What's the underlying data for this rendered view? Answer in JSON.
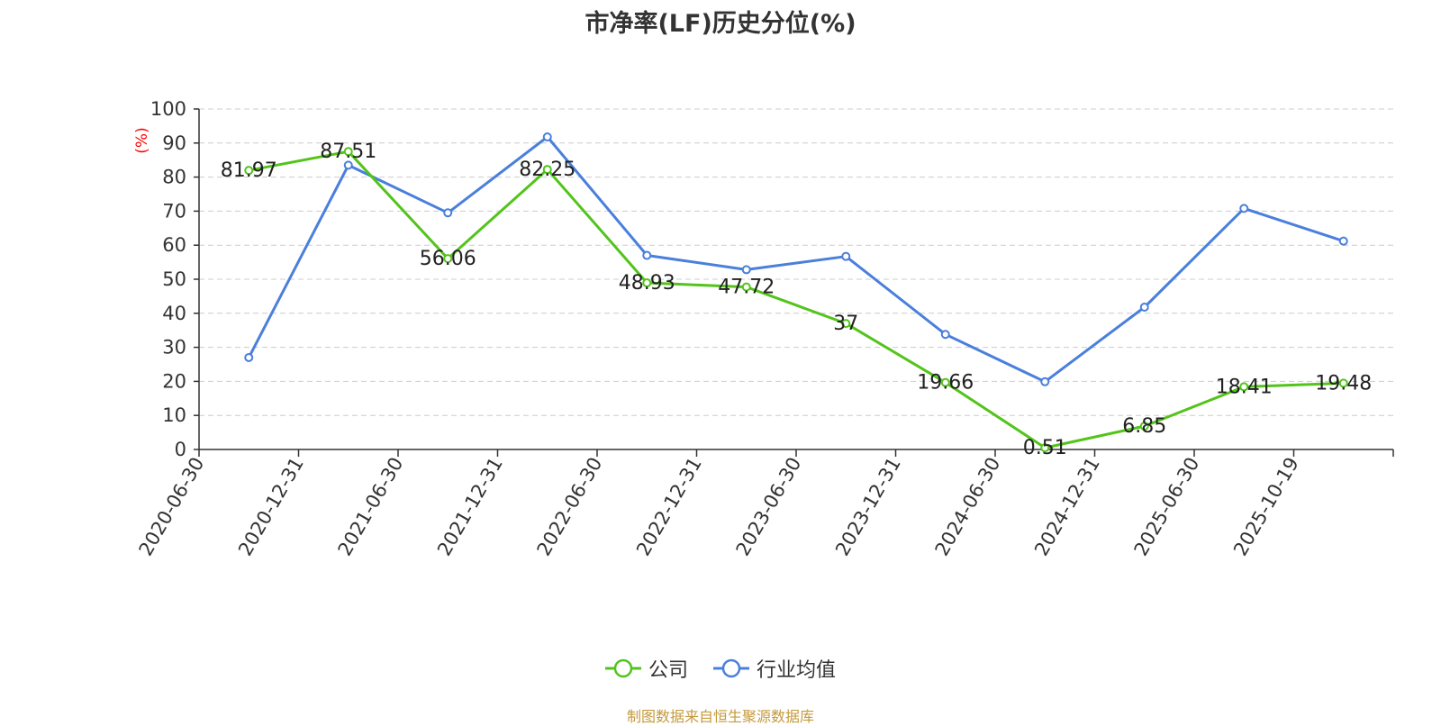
{
  "title": "市净率(LF)历史分位(%)",
  "source": "制图数据来自恒生聚源数据库",
  "chart_data": {
    "type": "line",
    "title": "市净率(LF)历史分位(%)",
    "ylabel": "(%)",
    "ylim": [
      0,
      100
    ],
    "yticks": [
      0,
      10,
      20,
      30,
      40,
      50,
      60,
      70,
      80,
      90,
      100
    ],
    "grid": true,
    "legend_position": "bottom",
    "categories": [
      "2020-06-30",
      "2020-12-31",
      "2021-06-30",
      "2021-12-31",
      "2022-06-30",
      "2022-12-31",
      "2023-06-30",
      "2023-12-31",
      "2024-06-30",
      "2024-12-31",
      "2025-06-30",
      "2025-10-19"
    ],
    "series": [
      {
        "name": "公司",
        "color": "#52c41a",
        "show_labels": true,
        "values": [
          81.97,
          87.51,
          56.06,
          82.25,
          48.93,
          47.72,
          37,
          19.66,
          0.51,
          6.85,
          18.41,
          19.48
        ]
      },
      {
        "name": "行业均值",
        "color": "#4a7fdb",
        "show_labels": false,
        "values": [
          27,
          83.5,
          69.5,
          91.8,
          57,
          52.8,
          56.7,
          33.8,
          19.9,
          41.8,
          70.8,
          61.2
        ]
      }
    ]
  }
}
